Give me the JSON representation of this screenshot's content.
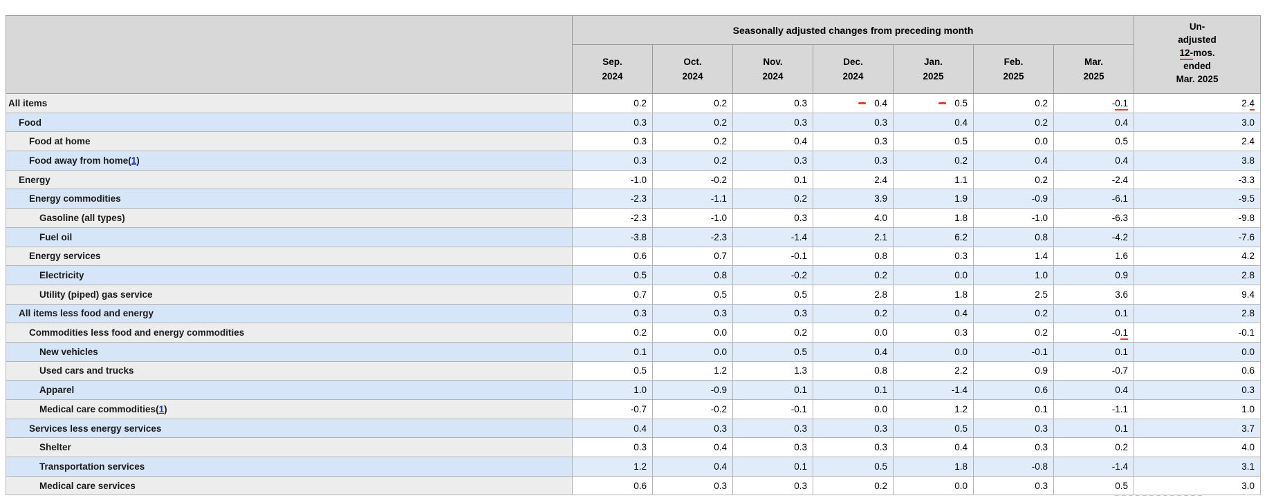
{
  "chart_data": {
    "type": "table",
    "group_header": "Seasonally adjusted changes from preceding month",
    "columns": [
      {
        "line1": "Sep.",
        "line2": "2024"
      },
      {
        "line1": "Oct.",
        "line2": "2024"
      },
      {
        "line1": "Nov.",
        "line2": "2024"
      },
      {
        "line1": "Dec.",
        "line2": "2024"
      },
      {
        "line1": "Jan.",
        "line2": "2025"
      },
      {
        "line1": "Feb.",
        "line2": "2025"
      },
      {
        "line1": "Mar.",
        "line2": "2025"
      }
    ],
    "unadjusted_header": {
      "lines": [
        "Un-",
        "adjusted",
        "12-mos.",
        "ended",
        "Mar. 2025"
      ],
      "red_underline": {
        "line": 2,
        "text": "12-"
      }
    },
    "footnote_marker": "1",
    "rows": [
      {
        "label": "All items",
        "indent": 0,
        "footnote": false,
        "values": [
          "0.2",
          "0.2",
          "0.3",
          "0.4",
          "0.5",
          "0.2",
          "-0.1",
          "2.4"
        ],
        "marks": {
          "3": "dash",
          "4": "dash",
          "6": "u3",
          "7": "u1"
        }
      },
      {
        "label": "Food",
        "indent": 1,
        "footnote": false,
        "values": [
          "0.3",
          "0.2",
          "0.3",
          "0.3",
          "0.4",
          "0.2",
          "0.4",
          "3.0"
        ]
      },
      {
        "label": "Food at home",
        "indent": 2,
        "footnote": false,
        "values": [
          "0.3",
          "0.2",
          "0.4",
          "0.3",
          "0.5",
          "0.0",
          "0.5",
          "2.4"
        ]
      },
      {
        "label": "Food away from home",
        "indent": 2,
        "footnote": true,
        "values": [
          "0.3",
          "0.2",
          "0.3",
          "0.3",
          "0.2",
          "0.4",
          "0.4",
          "3.8"
        ]
      },
      {
        "label": "Energy",
        "indent": 1,
        "footnote": false,
        "values": [
          "-1.0",
          "-0.2",
          "0.1",
          "2.4",
          "1.1",
          "0.2",
          "-2.4",
          "-3.3"
        ]
      },
      {
        "label": "Energy commodities",
        "indent": 2,
        "footnote": false,
        "values": [
          "-2.3",
          "-1.1",
          "0.2",
          "3.9",
          "1.9",
          "-0.9",
          "-6.1",
          "-9.5"
        ]
      },
      {
        "label": "Gasoline (all types)",
        "indent": 3,
        "footnote": false,
        "values": [
          "-2.3",
          "-1.0",
          "0.3",
          "4.0",
          "1.8",
          "-1.0",
          "-6.3",
          "-9.8"
        ]
      },
      {
        "label": "Fuel oil",
        "indent": 3,
        "footnote": false,
        "values": [
          "-3.8",
          "-2.3",
          "-1.4",
          "2.1",
          "6.2",
          "0.8",
          "-4.2",
          "-7.6"
        ]
      },
      {
        "label": "Energy services",
        "indent": 2,
        "footnote": false,
        "values": [
          "0.6",
          "0.7",
          "-0.1",
          "0.8",
          "0.3",
          "1.4",
          "1.6",
          "4.2"
        ]
      },
      {
        "label": "Electricity",
        "indent": 3,
        "footnote": false,
        "values": [
          "0.5",
          "0.8",
          "-0.2",
          "0.2",
          "0.0",
          "1.0",
          "0.9",
          "2.8"
        ]
      },
      {
        "label": "Utility (piped) gas service",
        "indent": 3,
        "footnote": false,
        "values": [
          "0.7",
          "0.5",
          "0.5",
          "2.8",
          "1.8",
          "2.5",
          "3.6",
          "9.4"
        ]
      },
      {
        "label": "All items less food and energy",
        "indent": 1,
        "footnote": false,
        "values": [
          "0.3",
          "0.3",
          "0.3",
          "0.2",
          "0.4",
          "0.2",
          "0.1",
          "2.8"
        ]
      },
      {
        "label": "Commodities less food and energy commodities",
        "indent": 2,
        "footnote": false,
        "values": [
          "0.2",
          "0.0",
          "0.2",
          "0.0",
          "0.3",
          "0.2",
          "-0.1",
          "-0.1"
        ],
        "marks": {
          "6": "u2"
        }
      },
      {
        "label": "New vehicles",
        "indent": 3,
        "footnote": false,
        "values": [
          "0.1",
          "0.0",
          "0.5",
          "0.4",
          "0.0",
          "-0.1",
          "0.1",
          "0.0"
        ]
      },
      {
        "label": "Used cars and trucks",
        "indent": 3,
        "footnote": false,
        "values": [
          "0.5",
          "1.2",
          "1.3",
          "0.8",
          "2.2",
          "0.9",
          "-0.7",
          "0.6"
        ]
      },
      {
        "label": "Apparel",
        "indent": 3,
        "footnote": false,
        "values": [
          "1.0",
          "-0.9",
          "0.1",
          "0.1",
          "-1.4",
          "0.6",
          "0.4",
          "0.3"
        ]
      },
      {
        "label": "Medical care commodities",
        "indent": 3,
        "footnote": true,
        "values": [
          "-0.7",
          "-0.2",
          "-0.1",
          "0.0",
          "1.2",
          "0.1",
          "-1.1",
          "1.0"
        ]
      },
      {
        "label": "Services less energy services",
        "indent": 2,
        "footnote": false,
        "values": [
          "0.4",
          "0.3",
          "0.3",
          "0.3",
          "0.5",
          "0.3",
          "0.1",
          "3.7"
        ]
      },
      {
        "label": "Shelter",
        "indent": 3,
        "footnote": false,
        "values": [
          "0.3",
          "0.4",
          "0.3",
          "0.3",
          "0.4",
          "0.3",
          "0.2",
          "4.0"
        ]
      },
      {
        "label": "Transportation services",
        "indent": 3,
        "footnote": false,
        "values": [
          "1.2",
          "0.4",
          "0.1",
          "0.5",
          "1.8",
          "-0.8",
          "-1.4",
          "3.1"
        ]
      },
      {
        "label": "Medical care services",
        "indent": 3,
        "footnote": false,
        "values": [
          "0.6",
          "0.3",
          "0.3",
          "0.2",
          "0.0",
          "0.3",
          "0.5",
          "3.0"
        ]
      }
    ]
  },
  "colors": {
    "header_bg": "#d8d8d8",
    "stub_gray_row_bg": "#ededed",
    "data_white_row_bg": "#ffffff",
    "stub_blue_row_bg": "#d7e5f8",
    "data_blue_row_bg": "#e1ecfa",
    "annotation_red": "#e8392f",
    "footnote_link_blue": "#1435cf",
    "border_outer": "#7d7d7d",
    "border_inner": "#b4b4b4"
  }
}
